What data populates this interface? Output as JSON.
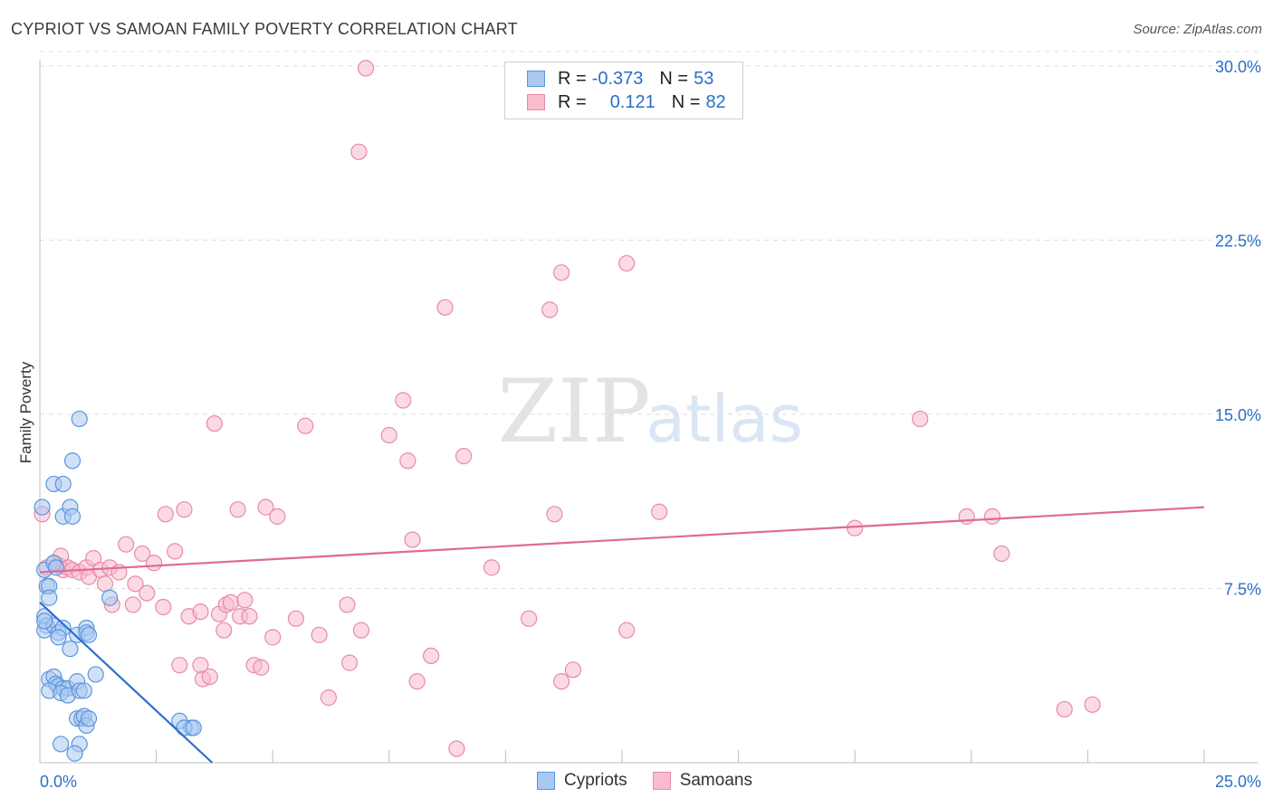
{
  "title": "CYPRIOT VS SAMOAN FAMILY POVERTY CORRELATION CHART",
  "source": "Source: ZipAtlas.com",
  "watermark": {
    "zip": "ZIP",
    "atlas": "atlas"
  },
  "legend": {
    "rows": [
      {
        "r_label": "R =",
        "r_value": "-0.373",
        "n_label": "N =",
        "n_value": "53"
      },
      {
        "r_label": "R =",
        "r_value": "0.121",
        "n_label": "N =",
        "n_value": "82"
      }
    ]
  },
  "colors": {
    "cypriot_fill": "#aac8f0",
    "cypriot_stroke": "#5b95dd",
    "cypriot_line": "#2a6fd0",
    "samoan_fill": "#f7bccd",
    "samoan_stroke": "#e88aa6",
    "samoan_line": "#e06a93",
    "axis_label": "#2a6fc9",
    "grid": "#dddddd"
  },
  "chart_data": {
    "type": "scatter",
    "title": "CYPRIOT VS SAMOAN FAMILY POVERTY CORRELATION CHART",
    "xlabel": "",
    "ylabel": "Family Poverty",
    "xlim": [
      0,
      25
    ],
    "ylim": [
      0,
      30.5
    ],
    "x_tick_labels": [
      "0.0%",
      "25.0%"
    ],
    "y_ticks": [
      7.5,
      15.0,
      22.5,
      30.0
    ],
    "y_tick_labels": [
      "7.5%",
      "15.0%",
      "22.5%",
      "30.0%"
    ],
    "legend_entries": [
      "Cypriots",
      "Samoans"
    ],
    "series": [
      {
        "name": "Cypriots",
        "r": -0.373,
        "n": 53,
        "trend": {
          "x": [
            0,
            3.7
          ],
          "y": [
            6.9,
            0
          ]
        },
        "points": [
          [
            0.05,
            11.0
          ],
          [
            0.1,
            8.3
          ],
          [
            0.15,
            7.6
          ],
          [
            0.2,
            7.6
          ],
          [
            0.2,
            7.1
          ],
          [
            0.3,
            8.6
          ],
          [
            0.35,
            8.4
          ],
          [
            0.3,
            12.0
          ],
          [
            0.5,
            12.0
          ],
          [
            0.5,
            10.6
          ],
          [
            0.65,
            11.0
          ],
          [
            0.7,
            10.6
          ],
          [
            0.7,
            13.0
          ],
          [
            0.85,
            14.8
          ],
          [
            0.1,
            6.3
          ],
          [
            0.15,
            5.9
          ],
          [
            0.1,
            5.7
          ],
          [
            0.3,
            5.9
          ],
          [
            0.4,
            5.6
          ],
          [
            0.5,
            5.8
          ],
          [
            0.4,
            5.4
          ],
          [
            0.65,
            4.9
          ],
          [
            0.8,
            5.5
          ],
          [
            1.0,
            5.8
          ],
          [
            1.0,
            5.6
          ],
          [
            1.05,
            5.5
          ],
          [
            1.5,
            7.1
          ],
          [
            0.2,
            3.6
          ],
          [
            0.3,
            3.7
          ],
          [
            0.35,
            3.4
          ],
          [
            0.4,
            3.3
          ],
          [
            0.5,
            3.2
          ],
          [
            0.6,
            3.2
          ],
          [
            0.2,
            3.1
          ],
          [
            0.45,
            3.0
          ],
          [
            0.6,
            2.9
          ],
          [
            0.8,
            3.5
          ],
          [
            0.85,
            3.1
          ],
          [
            0.95,
            3.1
          ],
          [
            1.2,
            3.8
          ],
          [
            0.8,
            1.9
          ],
          [
            0.9,
            1.9
          ],
          [
            0.95,
            2.0
          ],
          [
            1.0,
            1.6
          ],
          [
            1.05,
            1.9
          ],
          [
            0.45,
            0.8
          ],
          [
            0.85,
            0.8
          ],
          [
            0.75,
            0.4
          ],
          [
            3.0,
            1.8
          ],
          [
            3.25,
            1.5
          ],
          [
            3.1,
            1.5
          ],
          [
            3.3,
            1.5
          ],
          [
            0.1,
            6.1
          ]
        ]
      },
      {
        "name": "Samoans",
        "r": 0.121,
        "n": 82,
        "trend": {
          "x": [
            0,
            25
          ],
          "y": [
            8.2,
            11.0
          ]
        },
        "points": [
          [
            0.05,
            10.7
          ],
          [
            0.15,
            8.4
          ],
          [
            0.3,
            8.6
          ],
          [
            0.4,
            8.5
          ],
          [
            0.45,
            8.9
          ],
          [
            0.5,
            8.3
          ],
          [
            0.6,
            8.4
          ],
          [
            0.7,
            8.3
          ],
          [
            0.85,
            8.2
          ],
          [
            1.0,
            8.4
          ],
          [
            1.05,
            8.0
          ],
          [
            1.15,
            8.8
          ],
          [
            1.3,
            8.3
          ],
          [
            1.4,
            7.7
          ],
          [
            1.5,
            8.4
          ],
          [
            1.55,
            6.8
          ],
          [
            1.7,
            8.2
          ],
          [
            1.85,
            9.4
          ],
          [
            2.0,
            6.8
          ],
          [
            2.05,
            7.7
          ],
          [
            2.2,
            9.0
          ],
          [
            2.3,
            7.3
          ],
          [
            2.45,
            8.6
          ],
          [
            2.65,
            6.7
          ],
          [
            2.7,
            10.7
          ],
          [
            2.9,
            9.1
          ],
          [
            3.1,
            10.9
          ],
          [
            3.0,
            4.2
          ],
          [
            3.2,
            6.3
          ],
          [
            3.45,
            6.5
          ],
          [
            3.45,
            4.2
          ],
          [
            3.5,
            3.6
          ],
          [
            3.65,
            3.7
          ],
          [
            3.75,
            14.6
          ],
          [
            3.85,
            6.4
          ],
          [
            3.95,
            5.7
          ],
          [
            4.0,
            6.8
          ],
          [
            4.1,
            6.9
          ],
          [
            4.25,
            10.9
          ],
          [
            4.3,
            6.3
          ],
          [
            4.4,
            7.0
          ],
          [
            4.5,
            6.3
          ],
          [
            4.6,
            4.2
          ],
          [
            4.75,
            4.1
          ],
          [
            4.85,
            11.0
          ],
          [
            5.1,
            10.6
          ],
          [
            5.0,
            5.4
          ],
          [
            5.5,
            6.2
          ],
          [
            5.7,
            14.5
          ],
          [
            6.0,
            5.5
          ],
          [
            6.2,
            2.8
          ],
          [
            6.6,
            6.8
          ],
          [
            6.65,
            4.3
          ],
          [
            6.9,
            5.7
          ],
          [
            6.85,
            26.3
          ],
          [
            7.0,
            29.9
          ],
          [
            7.5,
            14.1
          ],
          [
            7.8,
            15.6
          ],
          [
            7.9,
            13.0
          ],
          [
            8.0,
            9.6
          ],
          [
            8.1,
            3.5
          ],
          [
            8.4,
            4.6
          ],
          [
            8.7,
            19.6
          ],
          [
            8.95,
            0.6
          ],
          [
            9.1,
            13.2
          ],
          [
            9.7,
            8.4
          ],
          [
            10.5,
            6.2
          ],
          [
            10.95,
            19.5
          ],
          [
            11.05,
            10.7
          ],
          [
            11.2,
            21.1
          ],
          [
            11.2,
            3.5
          ],
          [
            11.45,
            4.0
          ],
          [
            12.6,
            21.5
          ],
          [
            12.6,
            5.7
          ],
          [
            13.3,
            10.8
          ],
          [
            17.5,
            10.1
          ],
          [
            18.9,
            14.8
          ],
          [
            19.9,
            10.6
          ],
          [
            20.45,
            10.6
          ],
          [
            20.65,
            9.0
          ],
          [
            22.0,
            2.3
          ],
          [
            22.6,
            2.5
          ]
        ]
      }
    ]
  }
}
